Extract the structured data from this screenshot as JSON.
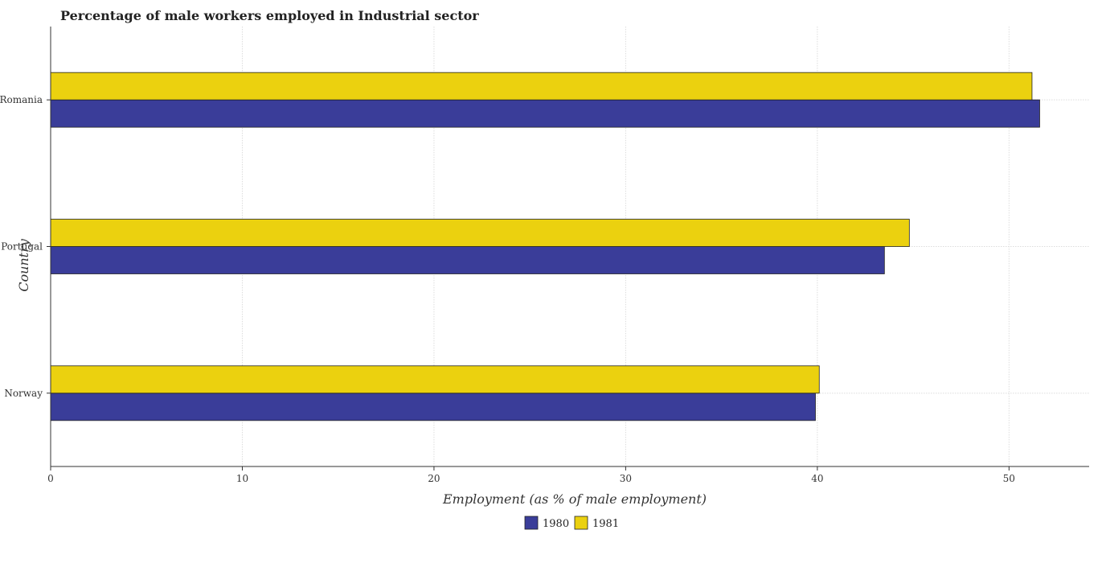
{
  "chart_data": {
    "type": "bar",
    "orientation": "horizontal",
    "title": "Percentage of male workers employed in Industrial sector",
    "xlabel": "Employment (as % of male employment)",
    "ylabel": "Country",
    "categories": [
      "Norway",
      "Portugal",
      "Romania"
    ],
    "series": [
      {
        "name": "1980",
        "color": "#3a3d99",
        "values": [
          39.9,
          43.5,
          51.6
        ]
      },
      {
        "name": "1981",
        "color": "#ebd10f",
        "values": [
          40.1,
          44.8,
          51.2
        ]
      }
    ],
    "xlim": [
      0,
      54.18
    ],
    "xticks": [
      0,
      10,
      20,
      30,
      40,
      50
    ],
    "grid": true,
    "legend_position": "bottom-center"
  }
}
